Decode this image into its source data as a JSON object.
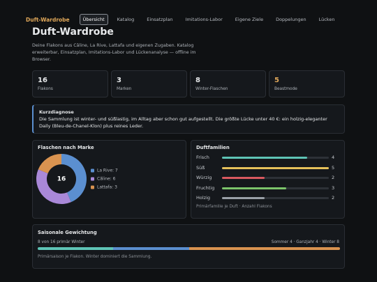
{
  "nav": {
    "brand": "Duft-Wardrobe",
    "tabs": [
      "Übersicht",
      "Katalog",
      "Einsatzplan",
      "Imitations-Labor",
      "Eigene Ziele",
      "Doppelungen",
      "Lücken"
    ],
    "active": 0
  },
  "header": {
    "title": "Duft-Wardrobe",
    "subtitle": "Deine Flakons aus Câline, La Rive, Lattafa und eigenen Zugaben. Katalog erweiterbar, Einsatzplan, Imitations-Labor und Lückenanalyse — offline im Browser."
  },
  "stats": [
    {
      "value": 16,
      "label": "Flakons"
    },
    {
      "value": 3,
      "label": "Marken"
    },
    {
      "value": 8,
      "label": "Winter-Flaschen"
    },
    {
      "value": 5,
      "label": "Beastmode",
      "color": "#e0a85a"
    }
  ],
  "diagnosis": {
    "title": "Kurzdiagnose",
    "text": "Die Sammlung ist winter- und süßlastig, im Alltag aber schon gut aufgestellt. Die größte Lücke unter 40 €: ein holzig-eleganter Daily (Bleu-de-Chanel-Klon) plus reines Leder."
  },
  "brands": {
    "title": "Flaschen nach Marke",
    "total": 16,
    "items": [
      {
        "label": "La Rive: 7",
        "value": 7,
        "color": "#5b8fd0"
      },
      {
        "label": "Câline: 6",
        "value": 6,
        "color": "#a988d8"
      },
      {
        "label": "Lattafa: 3",
        "value": 3,
        "color": "#d99350"
      }
    ]
  },
  "families": {
    "title": "Duftfamilien",
    "max": 5,
    "items": [
      {
        "name": "Frisch",
        "value": 4,
        "color": "#5ec4b6"
      },
      {
        "name": "Süß",
        "value": 5,
        "color": "#e6c15a"
      },
      {
        "name": "Würzig",
        "value": 2,
        "color": "#d9595f"
      },
      {
        "name": "Fruchtig",
        "value": 3,
        "color": "#7cc46a"
      },
      {
        "name": "Holzig",
        "value": 2,
        "color": "#9aa0a8"
      }
    ],
    "note": "Primärfamilie je Duft · Anzahl Flakons"
  },
  "seasons": {
    "title": "Saisonale Gewichtung",
    "left": "8 von 16 primär Winter",
    "right": "Sommer 4 · Ganzjahr 4 · Winter 8",
    "segments": [
      {
        "value": 4,
        "color": "#5ec4b6"
      },
      {
        "value": 4,
        "color": "#5b8fd0"
      },
      {
        "value": 8,
        "color": "#d99350"
      }
    ],
    "note": "Primärsaison je Flakon. Winter dominiert die Sammlung."
  }
}
